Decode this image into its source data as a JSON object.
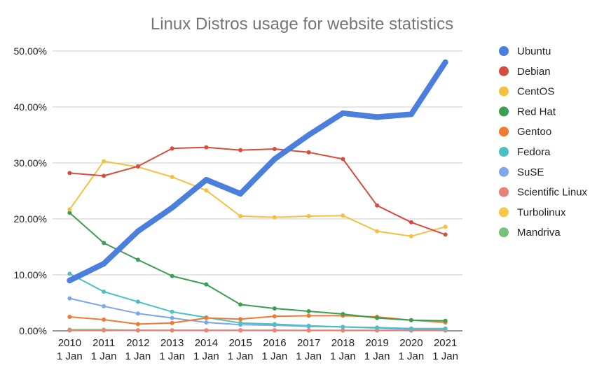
{
  "chart_data": {
    "type": "line",
    "title": "Linux Distros usage for website statistics",
    "xlabel": "",
    "ylabel": "",
    "ylim": [
      0,
      50
    ],
    "yticks": [
      "0.00%",
      "10.00%",
      "20.00%",
      "30.00%",
      "40.00%",
      "50.00%"
    ],
    "x": [
      "2010",
      "2011",
      "2012",
      "2013",
      "2014",
      "2015",
      "2016",
      "2017",
      "2018",
      "2019",
      "2020",
      "2021"
    ],
    "x_sublabel": "1 Jan",
    "grid": true,
    "legend_position": "right",
    "series": [
      {
        "name": "Ubuntu",
        "color": "#4a7fde",
        "values": [
          9.0,
          12.0,
          17.8,
          22.0,
          27.0,
          24.5,
          30.7,
          35.0,
          38.9,
          38.2,
          38.7,
          48.0
        ]
      },
      {
        "name": "Debian",
        "color": "#d64c3f",
        "values": [
          28.2,
          27.7,
          29.4,
          32.6,
          32.8,
          32.3,
          32.5,
          31.9,
          30.7,
          22.4,
          19.4,
          17.2
        ]
      },
      {
        "name": "CentOS",
        "color": "#f4c242",
        "values": [
          21.7,
          30.3,
          29.3,
          27.5,
          25.1,
          20.5,
          20.3,
          20.5,
          20.6,
          17.8,
          16.9,
          18.6
        ]
      },
      {
        "name": "Red Hat",
        "color": "#3a9f51",
        "values": [
          21.1,
          15.7,
          12.7,
          9.8,
          8.3,
          4.7,
          4.0,
          3.5,
          3.0,
          2.3,
          1.9,
          1.8
        ]
      },
      {
        "name": "Gentoo",
        "color": "#f07b30",
        "values": [
          2.5,
          2.0,
          1.2,
          1.4,
          2.3,
          2.1,
          2.6,
          2.7,
          2.7,
          2.5,
          1.9,
          1.5
        ]
      },
      {
        "name": "Fedora",
        "color": "#4bc1c3",
        "values": [
          10.2,
          7.0,
          5.2,
          3.4,
          2.4,
          1.4,
          1.2,
          0.9,
          0.7,
          0.6,
          0.4,
          0.4
        ]
      },
      {
        "name": "SuSE",
        "color": "#7fa6ea",
        "values": [
          5.8,
          4.4,
          3.1,
          2.3,
          1.5,
          1.1,
          1.0,
          0.8,
          0.7,
          0.5,
          0.3,
          0.3
        ]
      },
      {
        "name": "Scientific Linux",
        "color": "#e9807a",
        "values": [
          0.1,
          0.1,
          0.1,
          0.1,
          0.1,
          0.1,
          0.1,
          0.1,
          0.1,
          0.1,
          0.1,
          0.1
        ]
      },
      {
        "name": "Turbolinux",
        "color": "#f6c74a",
        "values": [
          0.1,
          0.1,
          0.05,
          0.05,
          0.05,
          0.05,
          0.05,
          0.05,
          0.05,
          0.05,
          0.05,
          0.05
        ]
      },
      {
        "name": "Mandriva",
        "color": "#74c07c",
        "values": [
          0.2,
          0.2,
          0.1,
          0.1,
          0.1,
          0.1,
          0.1,
          0.05,
          0.05,
          0.05,
          0.05,
          0.05
        ]
      }
    ]
  }
}
